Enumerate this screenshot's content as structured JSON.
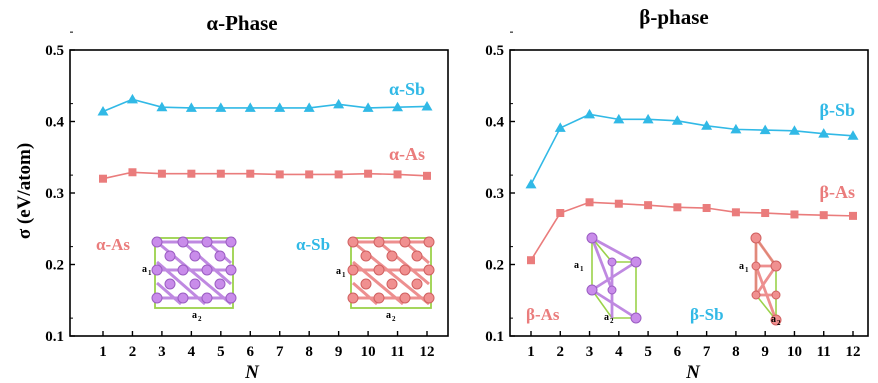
{
  "chart_data": [
    {
      "type": "line",
      "title": "α-Phase",
      "xlabel": "N",
      "ylabel": "σ (eV/atom)",
      "ylim": [
        0.1,
        0.5
      ],
      "yticks": [
        "0.1",
        "0.2",
        "0.3",
        "0.4",
        "0.5"
      ],
      "categories": [
        "1",
        "2",
        "3",
        "4",
        "5",
        "6",
        "7",
        "8",
        "9",
        "10",
        "11",
        "12"
      ],
      "grid": false,
      "series": [
        {
          "name": "α-Sb",
          "marker": "triangle",
          "color": "#31B9E6",
          "values": [
            0.414,
            0.431,
            0.42,
            0.419,
            0.419,
            0.419,
            0.419,
            0.419,
            0.424,
            0.419,
            0.42,
            0.421
          ]
        },
        {
          "name": "α-As",
          "marker": "square",
          "color": "#EA7C7C",
          "values": [
            0.32,
            0.329,
            0.327,
            0.327,
            0.327,
            0.327,
            0.326,
            0.326,
            0.326,
            0.327,
            0.326,
            0.324
          ]
        }
      ],
      "insets": [
        {
          "label": "α-As",
          "color": "#EA7C7C",
          "crystal_color": "#B575DC",
          "a1": "a",
          "a1_sub": "1",
          "a2": "a",
          "a2_sub": "2"
        },
        {
          "label": "α-Sb",
          "color": "#31B9E6",
          "crystal_color": "#EA7C7C",
          "a1": "a",
          "a1_sub": "1",
          "a2": "a",
          "a2_sub": "2"
        }
      ]
    },
    {
      "type": "line",
      "title": "β-phase",
      "xlabel": "N",
      "ylabel": "",
      "ylim": [
        0.1,
        0.5
      ],
      "yticks": [
        "0.1",
        "0.2",
        "0.3",
        "0.4",
        "0.5"
      ],
      "categories": [
        "1",
        "2",
        "3",
        "4",
        "5",
        "6",
        "7",
        "8",
        "9",
        "10",
        "11",
        "12"
      ],
      "grid": false,
      "series": [
        {
          "name": "β-Sb",
          "marker": "triangle",
          "color": "#31B9E6",
          "values": [
            0.312,
            0.391,
            0.41,
            0.403,
            0.403,
            0.401,
            0.394,
            0.389,
            0.388,
            0.387,
            0.383,
            0.38
          ]
        },
        {
          "name": "β-As",
          "marker": "square",
          "color": "#EA7C7C",
          "values": [
            0.206,
            0.272,
            0.287,
            0.285,
            0.283,
            0.28,
            0.279,
            0.273,
            0.272,
            0.27,
            0.269,
            0.268
          ]
        }
      ],
      "insets": [
        {
          "label": "β-As",
          "color": "#EA7C7C",
          "crystal_color": "#B575DC",
          "a1": "a",
          "a1_sub": "1",
          "a2": "a",
          "a2_sub": "2"
        },
        {
          "label": "β-Sb",
          "color": "#31B9E6",
          "crystal_color": "#EA7C7C",
          "a1": "a",
          "a1_sub": "1",
          "a2": "a",
          "a2_sub": "2"
        }
      ]
    }
  ]
}
